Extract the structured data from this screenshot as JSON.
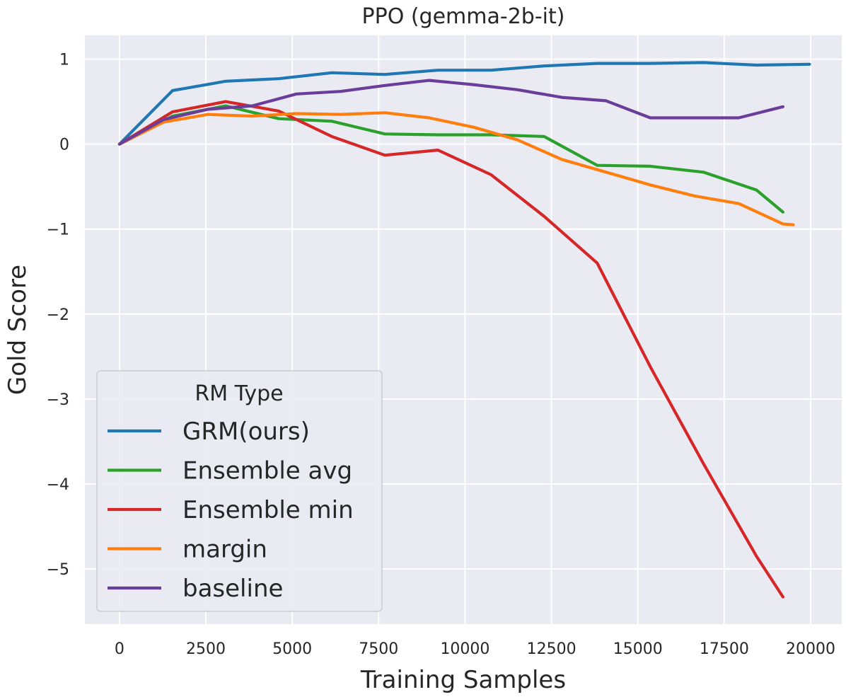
{
  "chart_data": {
    "type": "line",
    "title": "PPO (gemma-2b-it)",
    "xlabel": "Training Samples",
    "ylabel": "Gold Score",
    "xlim": [
      -1000,
      20900
    ],
    "ylim": [
      -5.65,
      1.28
    ],
    "xticks": [
      0,
      2500,
      5000,
      7500,
      10000,
      12500,
      15000,
      17500,
      20000
    ],
    "xtick_labels": [
      "0",
      "2500",
      "5000",
      "7500",
      "10000",
      "12500",
      "15000",
      "17500",
      "20000"
    ],
    "yticks": [
      1,
      0,
      -1,
      -2,
      -3,
      -4,
      -5
    ],
    "ytick_labels": [
      "1",
      "0",
      "−1",
      "−2",
      "−3",
      "−4",
      "−5"
    ],
    "grid": true,
    "legend": {
      "title": "RM Type",
      "placement": "lower-left"
    },
    "series": [
      {
        "name": "GRM(ours)",
        "color": "#1f77b4",
        "points": [
          [
            0,
            0
          ],
          [
            1536,
            0.63
          ],
          [
            3072,
            0.74
          ],
          [
            4608,
            0.77
          ],
          [
            6144,
            0.84
          ],
          [
            7680,
            0.82
          ],
          [
            9216,
            0.87
          ],
          [
            10752,
            0.87
          ],
          [
            12288,
            0.92
          ],
          [
            13824,
            0.95
          ],
          [
            15360,
            0.95
          ],
          [
            16896,
            0.96
          ],
          [
            18432,
            0.93
          ],
          [
            19968,
            0.94
          ]
        ]
      },
      {
        "name": "Ensemble avg",
        "color": "#2ca02c",
        "points": [
          [
            0,
            0
          ],
          [
            1536,
            0.33
          ],
          [
            3072,
            0.45
          ],
          [
            4608,
            0.3
          ],
          [
            6144,
            0.27
          ],
          [
            7680,
            0.12
          ],
          [
            9216,
            0.11
          ],
          [
            10752,
            0.11
          ],
          [
            12288,
            0.09
          ],
          [
            13824,
            -0.25
          ],
          [
            15360,
            -0.26
          ],
          [
            16896,
            -0.33
          ],
          [
            18432,
            -0.54
          ],
          [
            19200,
            -0.8
          ]
        ]
      },
      {
        "name": "Ensemble min",
        "color": "#d62728",
        "points": [
          [
            0,
            0
          ],
          [
            1536,
            0.38
          ],
          [
            3072,
            0.5
          ],
          [
            4608,
            0.39
          ],
          [
            6144,
            0.09
          ],
          [
            7680,
            -0.13
          ],
          [
            9216,
            -0.07
          ],
          [
            10752,
            -0.36
          ],
          [
            12288,
            -0.85
          ],
          [
            13824,
            -1.4
          ],
          [
            15360,
            -2.62
          ],
          [
            16896,
            -3.76
          ],
          [
            18432,
            -4.85
          ],
          [
            19200,
            -5.33
          ]
        ]
      },
      {
        "name": "margin",
        "color": "#ff7f0e",
        "points": [
          [
            0,
            0
          ],
          [
            1280,
            0.26
          ],
          [
            2560,
            0.35
          ],
          [
            3840,
            0.33
          ],
          [
            5120,
            0.36
          ],
          [
            6400,
            0.35
          ],
          [
            7680,
            0.37
          ],
          [
            8960,
            0.31
          ],
          [
            10240,
            0.2
          ],
          [
            11520,
            0.05
          ],
          [
            12800,
            -0.18
          ],
          [
            14080,
            -0.33
          ],
          [
            15360,
            -0.48
          ],
          [
            16640,
            -0.61
          ],
          [
            17920,
            -0.7
          ],
          [
            19200,
            -0.94
          ],
          [
            19500,
            -0.95
          ]
        ]
      },
      {
        "name": "baseline",
        "color": "#6a3d9a",
        "points": [
          [
            0,
            0
          ],
          [
            1280,
            0.29
          ],
          [
            2560,
            0.41
          ],
          [
            3840,
            0.45
          ],
          [
            5120,
            0.59
          ],
          [
            6400,
            0.62
          ],
          [
            7680,
            0.69
          ],
          [
            8960,
            0.75
          ],
          [
            10240,
            0.7
          ],
          [
            11520,
            0.64
          ],
          [
            12800,
            0.55
          ],
          [
            14080,
            0.51
          ],
          [
            15360,
            0.31
          ],
          [
            16640,
            0.31
          ],
          [
            17920,
            0.31
          ],
          [
            19200,
            0.44
          ]
        ]
      }
    ]
  }
}
